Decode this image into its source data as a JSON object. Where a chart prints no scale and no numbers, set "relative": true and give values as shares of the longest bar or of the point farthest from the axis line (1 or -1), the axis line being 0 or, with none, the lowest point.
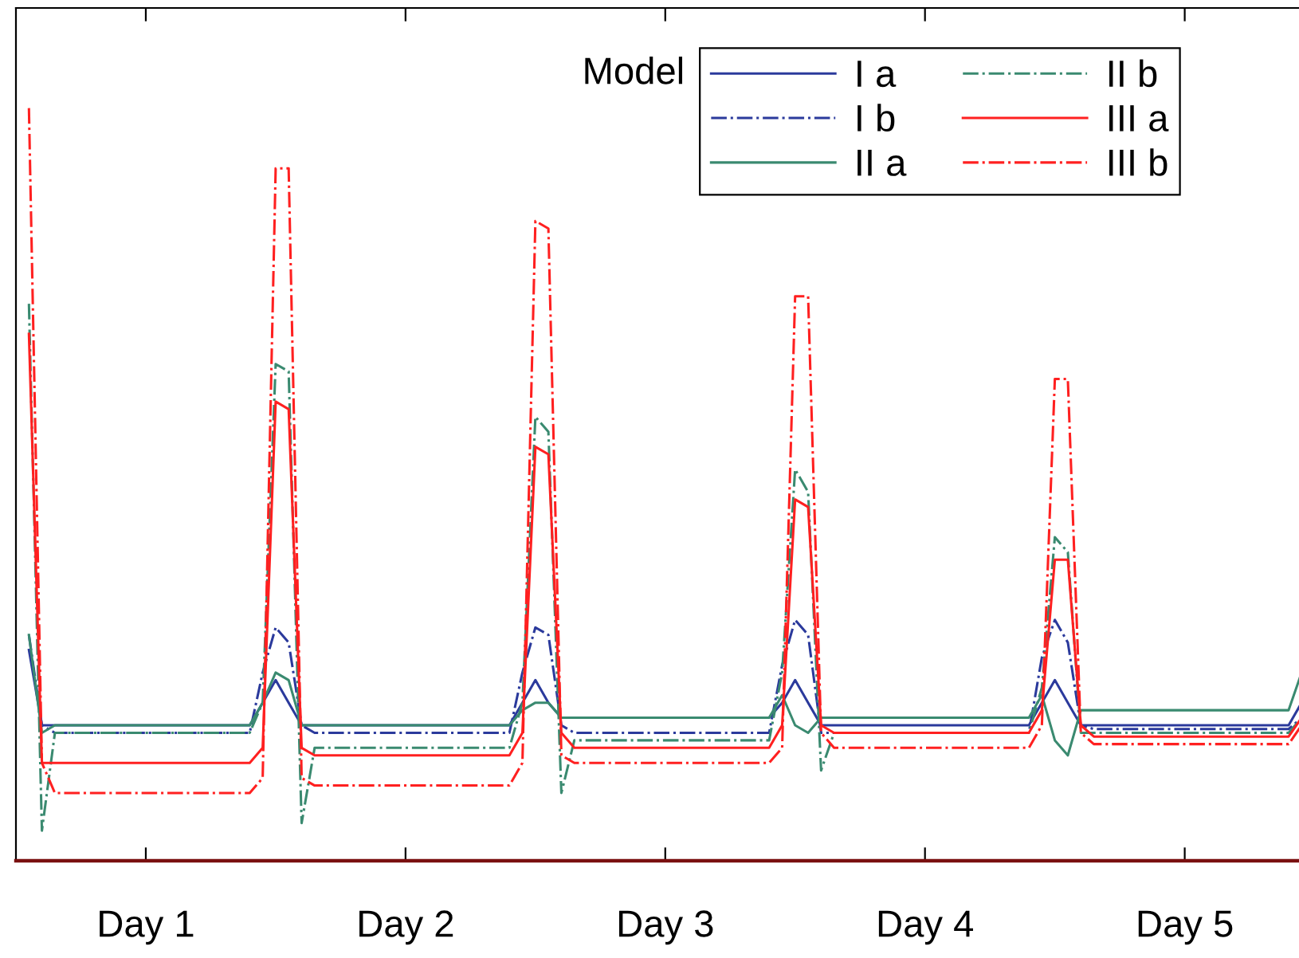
{
  "chart_data": {
    "type": "line",
    "relative": true,
    "legend_title": "Model",
    "legend": "top right",
    "tick_labels": "x",
    "grid": false,
    "categories": [
      null,
      null,
      null,
      null,
      null,
      null,
      null,
      null,
      null,
      "Day 1",
      null,
      null,
      null,
      null,
      null,
      null,
      null,
      null,
      null,
      null,
      null,
      null,
      null,
      null,
      null,
      null,
      null,
      null,
      null,
      "Day 2",
      null,
      null,
      null,
      null,
      null,
      null,
      null,
      null,
      null,
      null,
      null,
      null,
      null,
      null,
      null,
      null,
      null,
      null,
      null,
      "Day 3",
      null,
      null,
      null,
      null,
      null,
      null,
      null,
      null,
      null,
      null,
      null,
      null,
      null,
      null,
      null,
      null,
      null,
      null,
      null,
      "Day 4",
      null,
      null,
      null,
      null,
      null,
      null,
      null,
      null,
      null,
      null,
      null,
      null,
      null,
      null,
      null,
      null,
      null,
      null,
      null,
      "Day 5",
      null,
      null,
      null,
      null,
      null,
      null,
      null,
      null,
      null
    ],
    "series": [
      {
        "name": "I a",
        "color": "#2b3a9c",
        "line_style": "solid",
        "values": [
          0.28,
          0.18,
          0.18,
          0.18,
          0.18,
          0.18,
          0.18,
          0.18,
          0.18,
          0.18,
          0.18,
          0.18,
          0.18,
          0.18,
          0.18,
          0.18,
          0.18,
          0.18,
          0.21,
          0.24,
          0.21,
          0.18,
          0.18,
          0.18,
          0.18,
          0.18,
          0.18,
          0.18,
          0.18,
          0.18,
          0.18,
          0.18,
          0.18,
          0.18,
          0.18,
          0.18,
          0.18,
          0.18,
          0.21,
          0.24,
          0.21,
          0.19,
          0.19,
          0.19,
          0.19,
          0.19,
          0.19,
          0.19,
          0.19,
          0.19,
          0.19,
          0.19,
          0.19,
          0.19,
          0.19,
          0.19,
          0.19,
          0.19,
          0.21,
          0.24,
          0.21,
          0.18,
          0.18,
          0.18,
          0.18,
          0.18,
          0.18,
          0.18,
          0.18,
          0.18,
          0.18,
          0.18,
          0.18,
          0.18,
          0.18,
          0.18,
          0.18,
          0.18,
          0.21,
          0.24,
          0.21,
          0.18,
          0.18,
          0.18,
          0.18,
          0.18,
          0.18,
          0.18,
          0.18,
          0.18,
          0.18,
          0.18,
          0.18,
          0.18,
          0.18,
          0.18,
          0.18,
          0.18,
          0.21
        ]
      },
      {
        "name": "I b",
        "color": "#2b3a9c",
        "line_style": "dashdot",
        "values": [
          0.3,
          0.18,
          0.17,
          0.17,
          0.17,
          0.17,
          0.17,
          0.17,
          0.17,
          0.17,
          0.17,
          0.17,
          0.17,
          0.17,
          0.17,
          0.17,
          0.17,
          0.17,
          0.25,
          0.31,
          0.29,
          0.18,
          0.17,
          0.17,
          0.17,
          0.17,
          0.17,
          0.17,
          0.17,
          0.17,
          0.17,
          0.17,
          0.17,
          0.17,
          0.17,
          0.17,
          0.17,
          0.17,
          0.25,
          0.31,
          0.3,
          0.18,
          0.17,
          0.17,
          0.17,
          0.17,
          0.17,
          0.17,
          0.17,
          0.17,
          0.17,
          0.17,
          0.17,
          0.17,
          0.17,
          0.17,
          0.17,
          0.17,
          0.26,
          0.32,
          0.3,
          0.17,
          0.17,
          0.17,
          0.17,
          0.17,
          0.17,
          0.17,
          0.17,
          0.17,
          0.17,
          0.17,
          0.17,
          0.17,
          0.17,
          0.17,
          0.17,
          0.17,
          0.27,
          0.32,
          0.29,
          0.18,
          0.175,
          0.175,
          0.175,
          0.175,
          0.175,
          0.175,
          0.175,
          0.175,
          0.175,
          0.175,
          0.175,
          0.175,
          0.175,
          0.175,
          0.175,
          0.175,
          0.19
        ]
      },
      {
        "name": "II a",
        "color": "#3a8a70",
        "line_style": "solid",
        "values": [
          0.3,
          0.17,
          0.18,
          0.18,
          0.18,
          0.18,
          0.18,
          0.18,
          0.18,
          0.18,
          0.18,
          0.18,
          0.18,
          0.18,
          0.18,
          0.18,
          0.18,
          0.18,
          0.21,
          0.25,
          0.24,
          0.18,
          0.18,
          0.18,
          0.18,
          0.18,
          0.18,
          0.18,
          0.18,
          0.18,
          0.18,
          0.18,
          0.18,
          0.18,
          0.18,
          0.18,
          0.18,
          0.18,
          0.2,
          0.21,
          0.21,
          0.19,
          0.19,
          0.19,
          0.19,
          0.19,
          0.19,
          0.19,
          0.19,
          0.19,
          0.19,
          0.19,
          0.19,
          0.19,
          0.19,
          0.19,
          0.19,
          0.19,
          0.22,
          0.18,
          0.17,
          0.19,
          0.19,
          0.19,
          0.19,
          0.19,
          0.19,
          0.19,
          0.19,
          0.19,
          0.19,
          0.19,
          0.19,
          0.19,
          0.19,
          0.19,
          0.19,
          0.19,
          0.22,
          0.16,
          0.14,
          0.2,
          0.2,
          0.2,
          0.2,
          0.2,
          0.2,
          0.2,
          0.2,
          0.2,
          0.2,
          0.2,
          0.2,
          0.2,
          0.2,
          0.2,
          0.2,
          0.2,
          0.25
        ]
      },
      {
        "name": "II b",
        "color": "#3a8a70",
        "line_style": "dashdot",
        "values": [
          0.74,
          0.04,
          0.17,
          0.17,
          0.17,
          0.17,
          0.17,
          0.17,
          0.17,
          0.17,
          0.17,
          0.17,
          0.17,
          0.17,
          0.17,
          0.17,
          0.17,
          0.17,
          0.21,
          0.66,
          0.65,
          0.05,
          0.15,
          0.15,
          0.15,
          0.15,
          0.15,
          0.15,
          0.15,
          0.15,
          0.15,
          0.15,
          0.15,
          0.15,
          0.15,
          0.15,
          0.15,
          0.15,
          0.21,
          0.59,
          0.57,
          0.09,
          0.16,
          0.16,
          0.16,
          0.16,
          0.16,
          0.16,
          0.16,
          0.16,
          0.16,
          0.16,
          0.16,
          0.16,
          0.16,
          0.16,
          0.16,
          0.16,
          0.25,
          0.52,
          0.49,
          0.12,
          0.17,
          0.17,
          0.17,
          0.17,
          0.17,
          0.17,
          0.17,
          0.17,
          0.17,
          0.17,
          0.17,
          0.17,
          0.17,
          0.17,
          0.17,
          0.17,
          0.23,
          0.43,
          0.41,
          0.17,
          0.17,
          0.17,
          0.17,
          0.17,
          0.17,
          0.17,
          0.17,
          0.17,
          0.17,
          0.17,
          0.17,
          0.17,
          0.17,
          0.17,
          0.17,
          0.17,
          0.19
        ]
      },
      {
        "name": "III a",
        "color": "#ff2020",
        "line_style": "solid",
        "values": [
          0.7,
          0.13,
          0.13,
          0.13,
          0.13,
          0.13,
          0.13,
          0.13,
          0.13,
          0.13,
          0.13,
          0.13,
          0.13,
          0.13,
          0.13,
          0.13,
          0.13,
          0.13,
          0.15,
          0.61,
          0.6,
          0.15,
          0.14,
          0.14,
          0.14,
          0.14,
          0.14,
          0.14,
          0.14,
          0.14,
          0.14,
          0.14,
          0.14,
          0.14,
          0.14,
          0.14,
          0.14,
          0.14,
          0.17,
          0.55,
          0.54,
          0.17,
          0.15,
          0.15,
          0.15,
          0.15,
          0.15,
          0.15,
          0.15,
          0.15,
          0.15,
          0.15,
          0.15,
          0.15,
          0.15,
          0.15,
          0.15,
          0.15,
          0.18,
          0.48,
          0.47,
          0.18,
          0.17,
          0.17,
          0.17,
          0.17,
          0.17,
          0.17,
          0.17,
          0.17,
          0.17,
          0.17,
          0.17,
          0.17,
          0.17,
          0.17,
          0.17,
          0.17,
          0.2,
          0.4,
          0.4,
          0.18,
          0.165,
          0.165,
          0.165,
          0.165,
          0.165,
          0.165,
          0.165,
          0.165,
          0.165,
          0.165,
          0.165,
          0.165,
          0.165,
          0.165,
          0.165,
          0.165,
          0.19
        ]
      },
      {
        "name": "III b",
        "color": "#ff2020",
        "line_style": "dashdot",
        "values": [
          1.0,
          0.13,
          0.09,
          0.09,
          0.09,
          0.09,
          0.09,
          0.09,
          0.09,
          0.09,
          0.09,
          0.09,
          0.09,
          0.09,
          0.09,
          0.09,
          0.09,
          0.09,
          0.11,
          0.92,
          0.92,
          0.11,
          0.1,
          0.1,
          0.1,
          0.1,
          0.1,
          0.1,
          0.1,
          0.1,
          0.1,
          0.1,
          0.1,
          0.1,
          0.1,
          0.1,
          0.1,
          0.1,
          0.13,
          0.85,
          0.84,
          0.14,
          0.13,
          0.13,
          0.13,
          0.13,
          0.13,
          0.13,
          0.13,
          0.13,
          0.13,
          0.13,
          0.13,
          0.13,
          0.13,
          0.13,
          0.13,
          0.13,
          0.15,
          0.75,
          0.75,
          0.17,
          0.15,
          0.15,
          0.15,
          0.15,
          0.15,
          0.15,
          0.15,
          0.15,
          0.15,
          0.15,
          0.15,
          0.15,
          0.15,
          0.15,
          0.15,
          0.15,
          0.18,
          0.64,
          0.64,
          0.17,
          0.155,
          0.155,
          0.155,
          0.155,
          0.155,
          0.155,
          0.155,
          0.155,
          0.155,
          0.155,
          0.155,
          0.155,
          0.155,
          0.155,
          0.155,
          0.155,
          0.18
        ]
      }
    ]
  }
}
